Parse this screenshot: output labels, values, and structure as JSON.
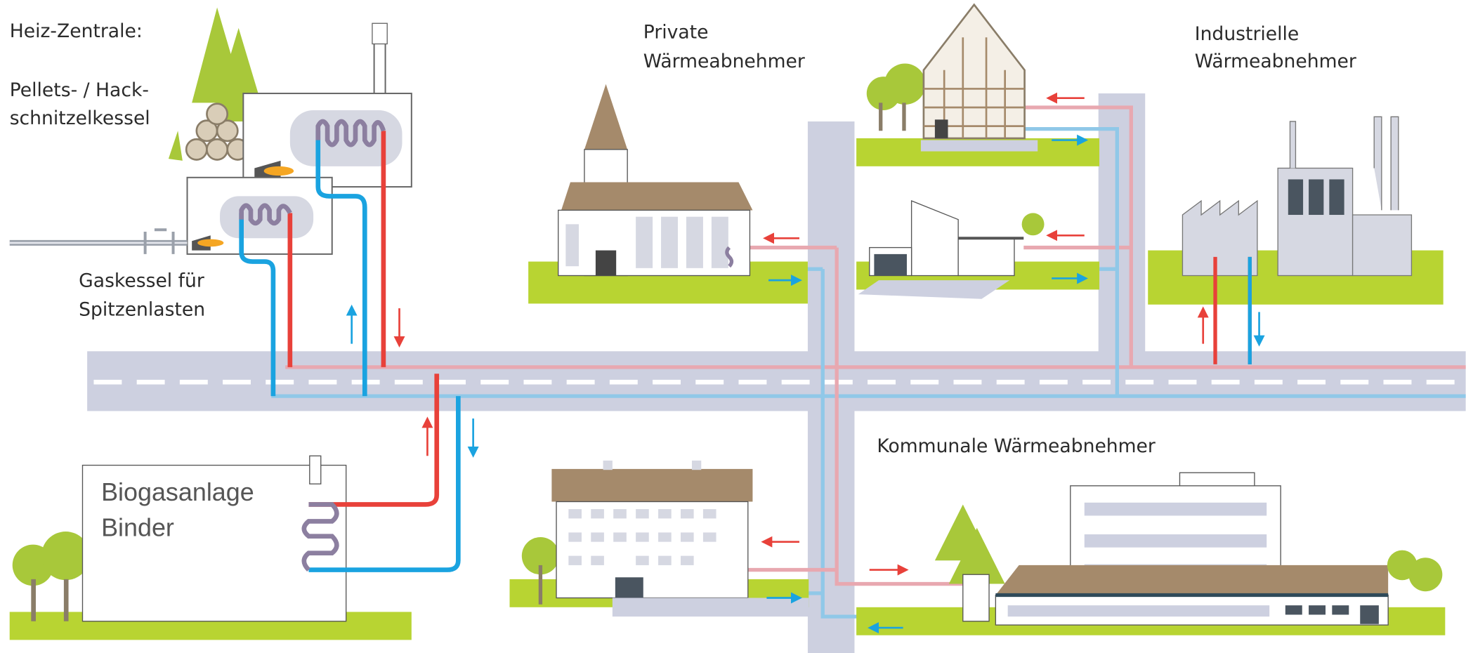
{
  "heating_central": {
    "title": "Heiz-Zentrale:",
    "boiler_label": [
      "Pellets- / Hack-",
      "schnitzelkessel"
    ],
    "gas_boiler_label": [
      "Gaskessel für",
      "Spitzenlasten"
    ]
  },
  "consumers": {
    "private": [
      "Private",
      "Wärmeabnehmer"
    ],
    "industrial": [
      "Industrielle",
      "Wärmeabnehmer"
    ],
    "municipal": "Kommunale Wärmeabnehmer"
  },
  "biogas_plant": [
    "Biogasanlage",
    "Binder"
  ]
}
